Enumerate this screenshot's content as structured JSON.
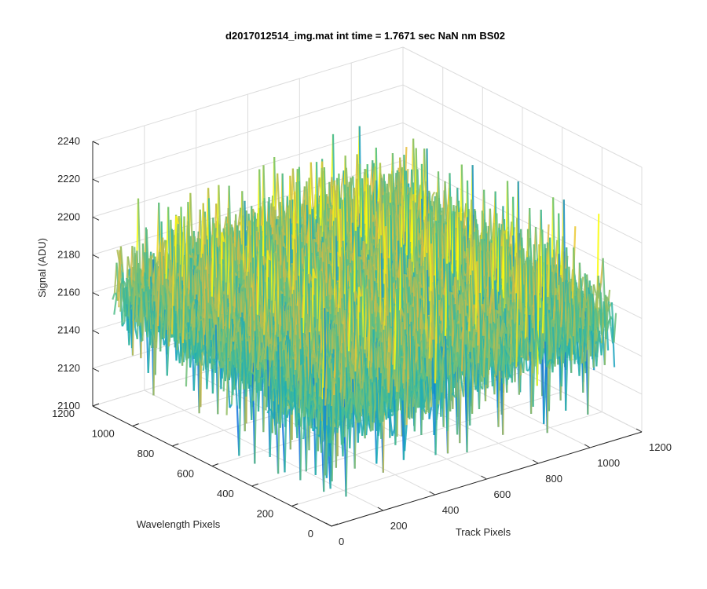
{
  "chart_data": {
    "type": "surface",
    "title": "d2017012514_img.mat int time = 1.7671 sec  NaN nm BS02",
    "xlabel": "Track Pixels",
    "ylabel": "Wavelength Pixels",
    "zlabel": "Signal (ADU)",
    "xlim": [
      0,
      1200
    ],
    "ylim": [
      0,
      1200
    ],
    "zlim": [
      2100,
      2240
    ],
    "x_ticks": [
      0,
      200,
      400,
      600,
      800,
      1000,
      1200
    ],
    "y_ticks": [
      0,
      200,
      400,
      600,
      800,
      1000,
      1200
    ],
    "z_ticks": [
      2100,
      2120,
      2140,
      2160,
      2180,
      2200,
      2220,
      2240
    ],
    "grid": true,
    "colormap": "parula",
    "surface_summary": {
      "data_extent_x": [
        0,
        1100
      ],
      "data_extent_y": [
        0,
        1100
      ],
      "mean_signal": 2160,
      "min_signal_approx": 2110,
      "max_signal_approx": 2215
    }
  }
}
